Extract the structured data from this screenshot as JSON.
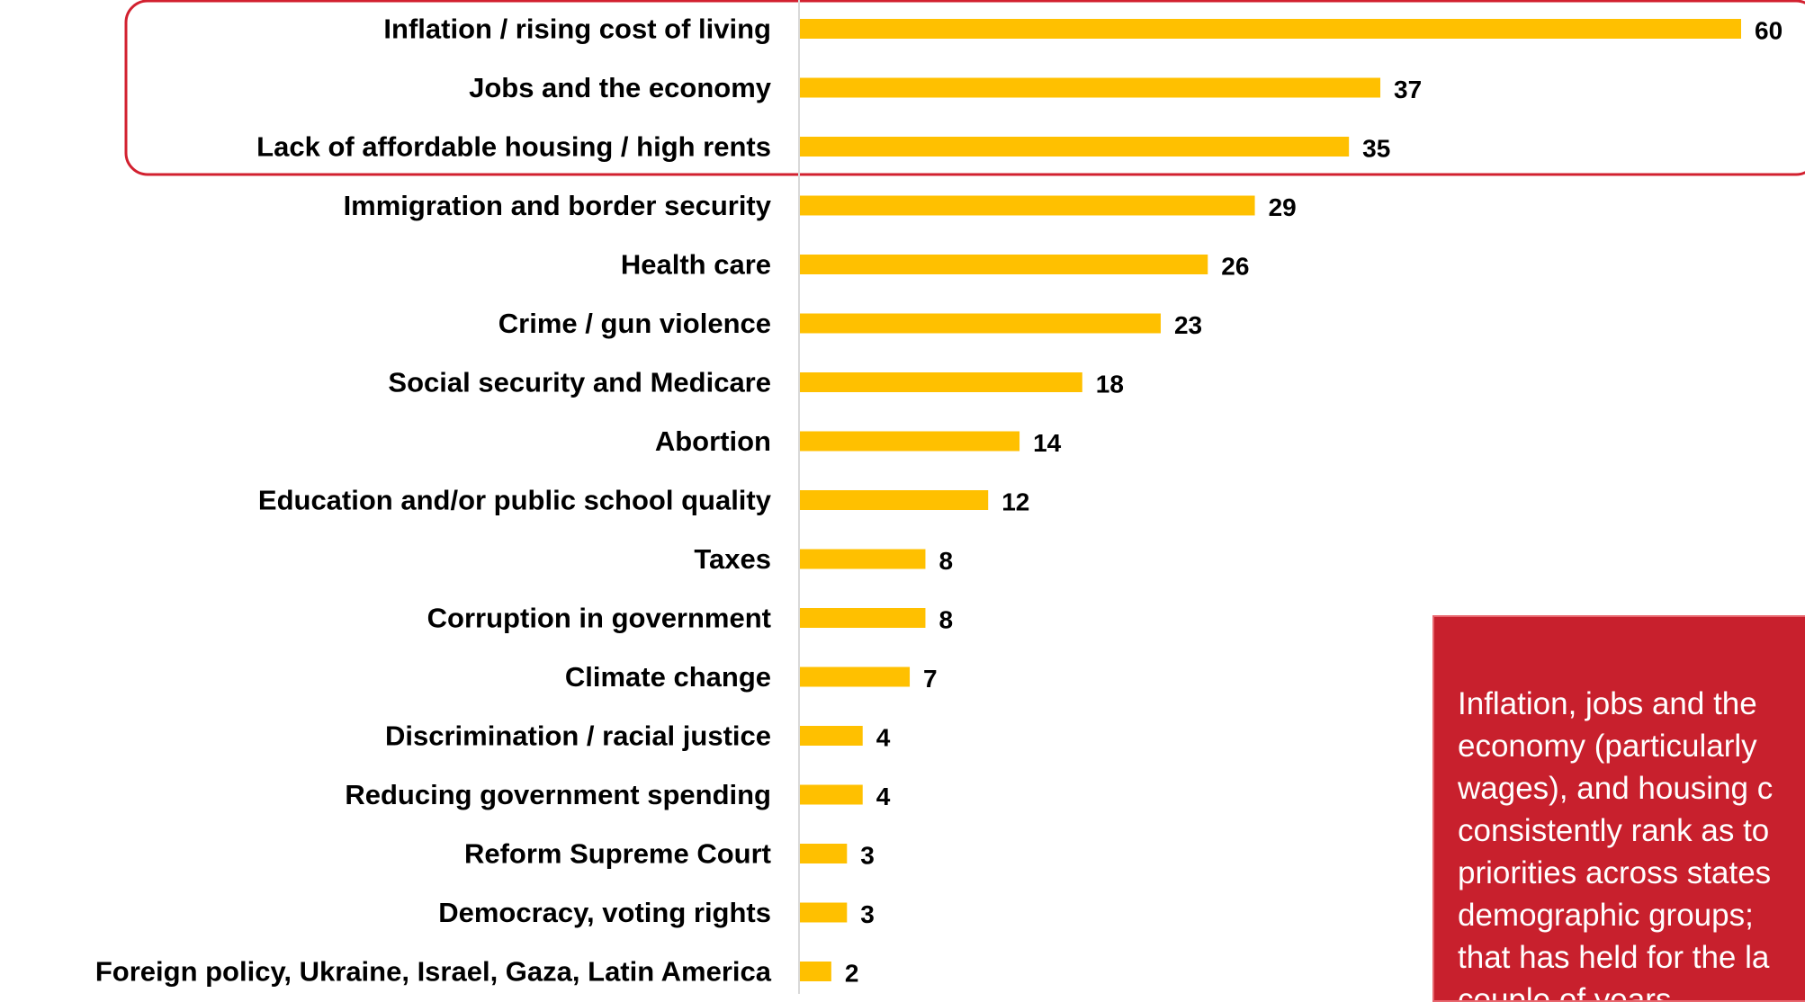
{
  "chart_data": {
    "type": "bar",
    "orientation": "horizontal",
    "categories": [
      "Inflation / rising cost of living",
      "Jobs and the economy",
      "Lack of affordable housing / high rents",
      "Immigration and border security",
      "Health care",
      "Crime / gun violence",
      "Social security and Medicare",
      "Abortion",
      "Education and/or public school quality",
      "Taxes",
      "Corruption in government",
      "Climate change",
      "Discrimination / racial justice",
      "Reducing government spending",
      "Reform Supreme Court",
      "Democracy, voting rights",
      "Foreign policy, Ukraine, Israel, Gaza, Latin America"
    ],
    "values": [
      60,
      37,
      35,
      29,
      26,
      23,
      18,
      14,
      12,
      8,
      8,
      7,
      4,
      4,
      3,
      3,
      2
    ],
    "xlim": [
      0,
      60
    ],
    "grid": false,
    "highlight_group": [
      0,
      1,
      2
    ],
    "title": "",
    "xlabel": "",
    "ylabel": ""
  },
  "colors": {
    "bar": "#ffc000",
    "highlight_border": "#d2202f",
    "callout_bg": "#c8202d",
    "axis": "#d9d9d9"
  },
  "callout": {
    "text": "Inflation, jobs and the\neconomy (particularly\nwages), and housing c\nconsistently rank as to\npriorities across states\ndemographic groups;\nthat has held for the la\ncouple of years."
  }
}
